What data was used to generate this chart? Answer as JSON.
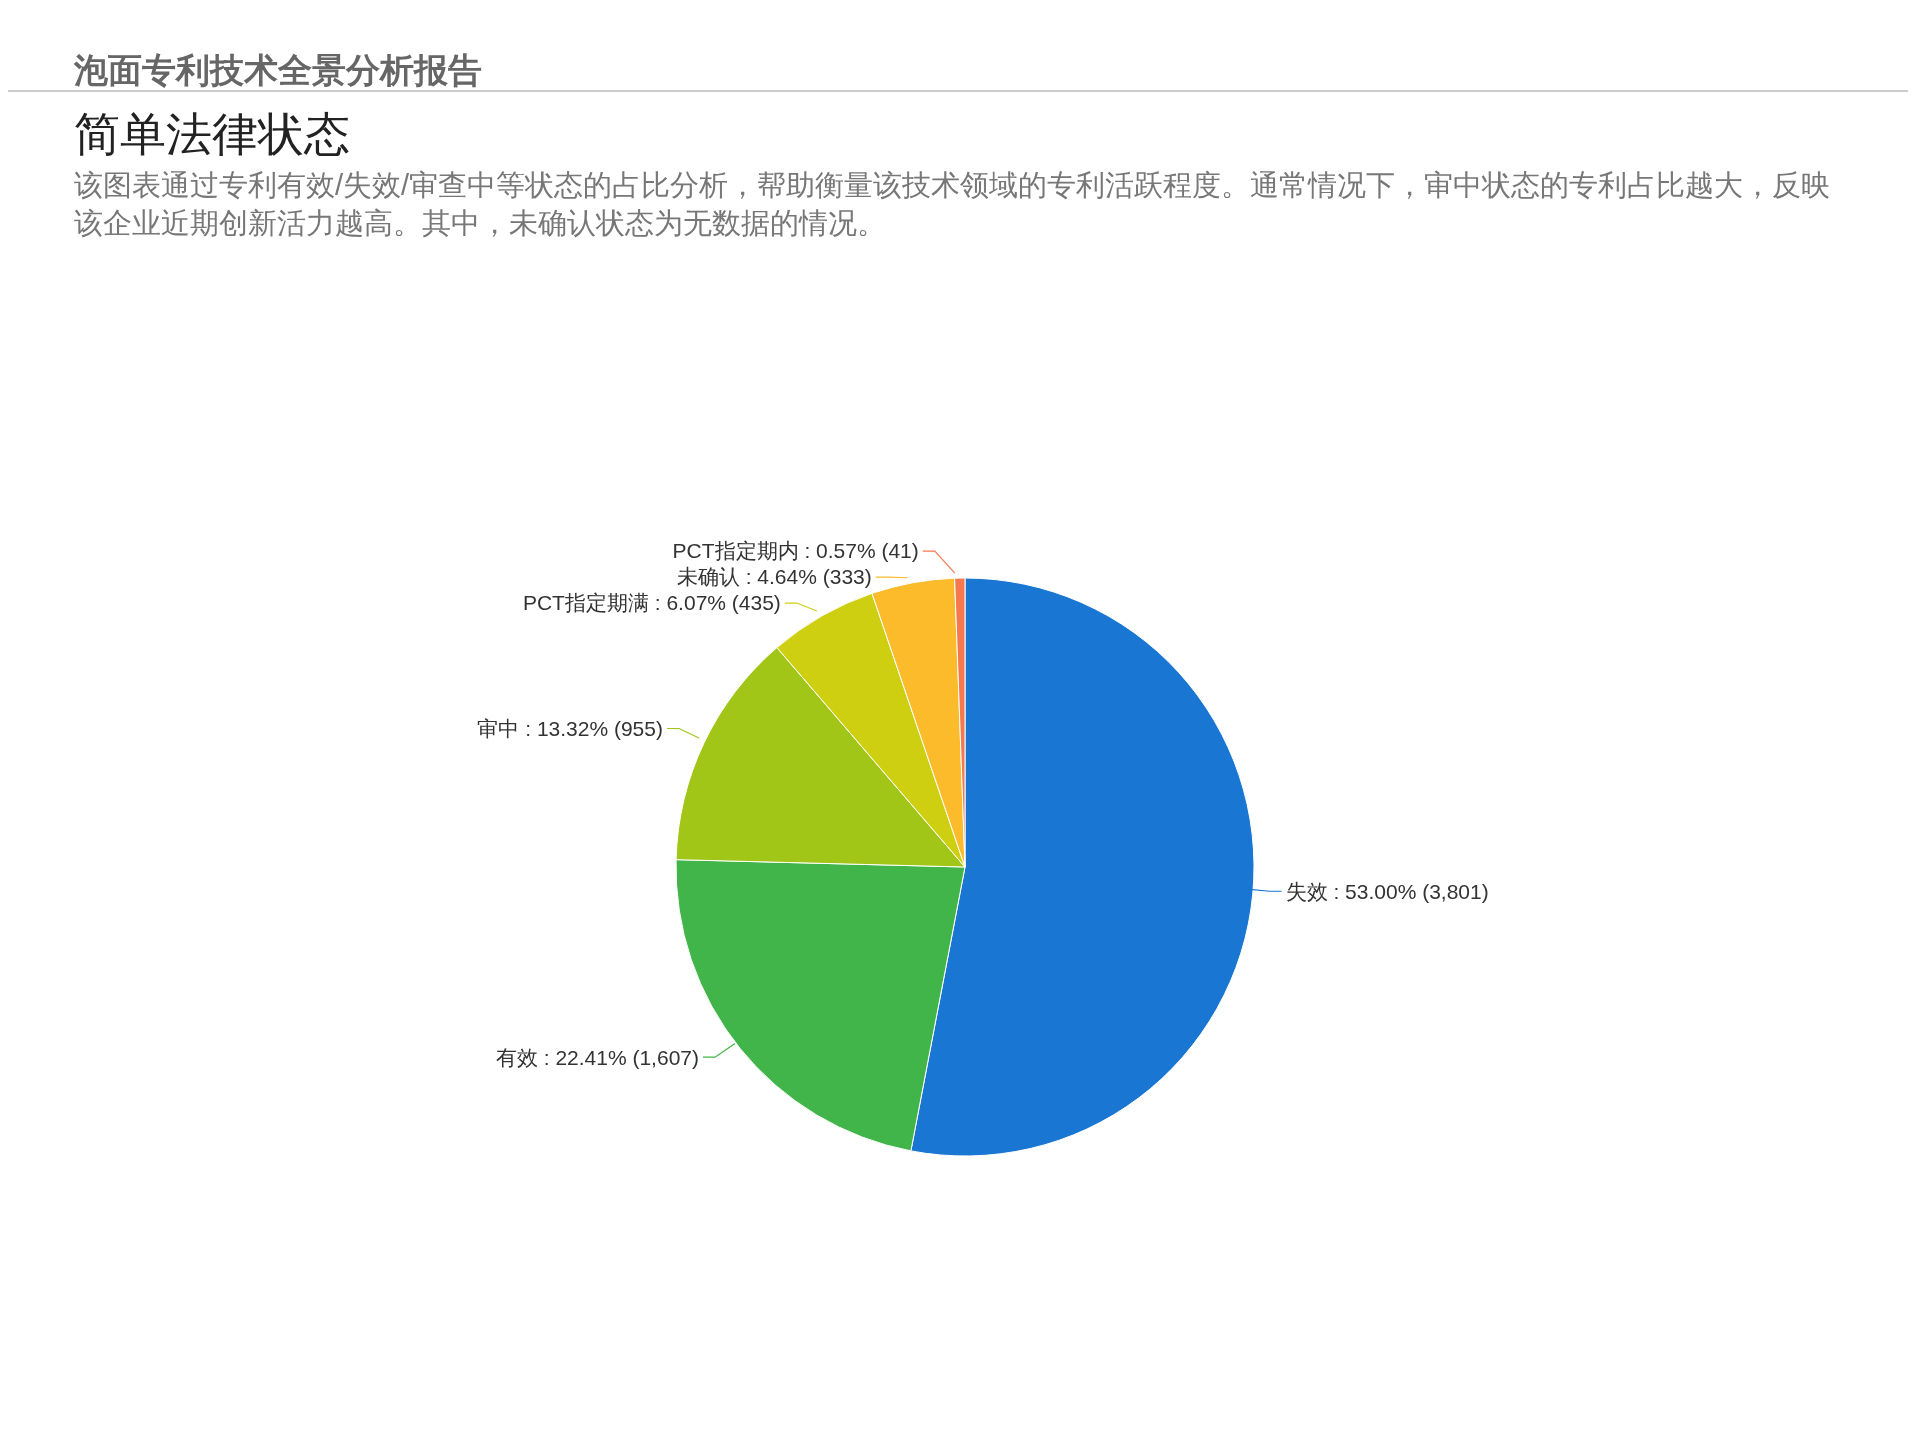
{
  "chart_data": {
    "type": "pie",
    "title": "简单法律状态",
    "subtitle": "该图表通过专利有效/失效/审查中等状态的占比分析，帮助衡量该技术领域的专利活跃程度。通常情况下，审中状态的专利占比越大，反映该企业近期创新活力越高。其中，未确认状态为无数据的情况。",
    "annotations": [
      "泡面专利技术全景分析报告"
    ],
    "categories": [
      "失效",
      "有效",
      "审中",
      "PCT指定期满",
      "未确认",
      "PCT指定期内"
    ],
    "values": [
      3801,
      1607,
      955,
      435,
      333,
      41
    ],
    "value_labels": [
      "53.00% (3,801)",
      "22.41% (1,607)",
      "13.32% (955)",
      "6.07% (435)",
      "4.64% (333)",
      "0.57% (41)"
    ],
    "colors": [
      "#1976d2",
      "#41b549",
      "#a2c617",
      "#cfcf12",
      "#fbbb2a",
      "#f5794f"
    ]
  }
}
